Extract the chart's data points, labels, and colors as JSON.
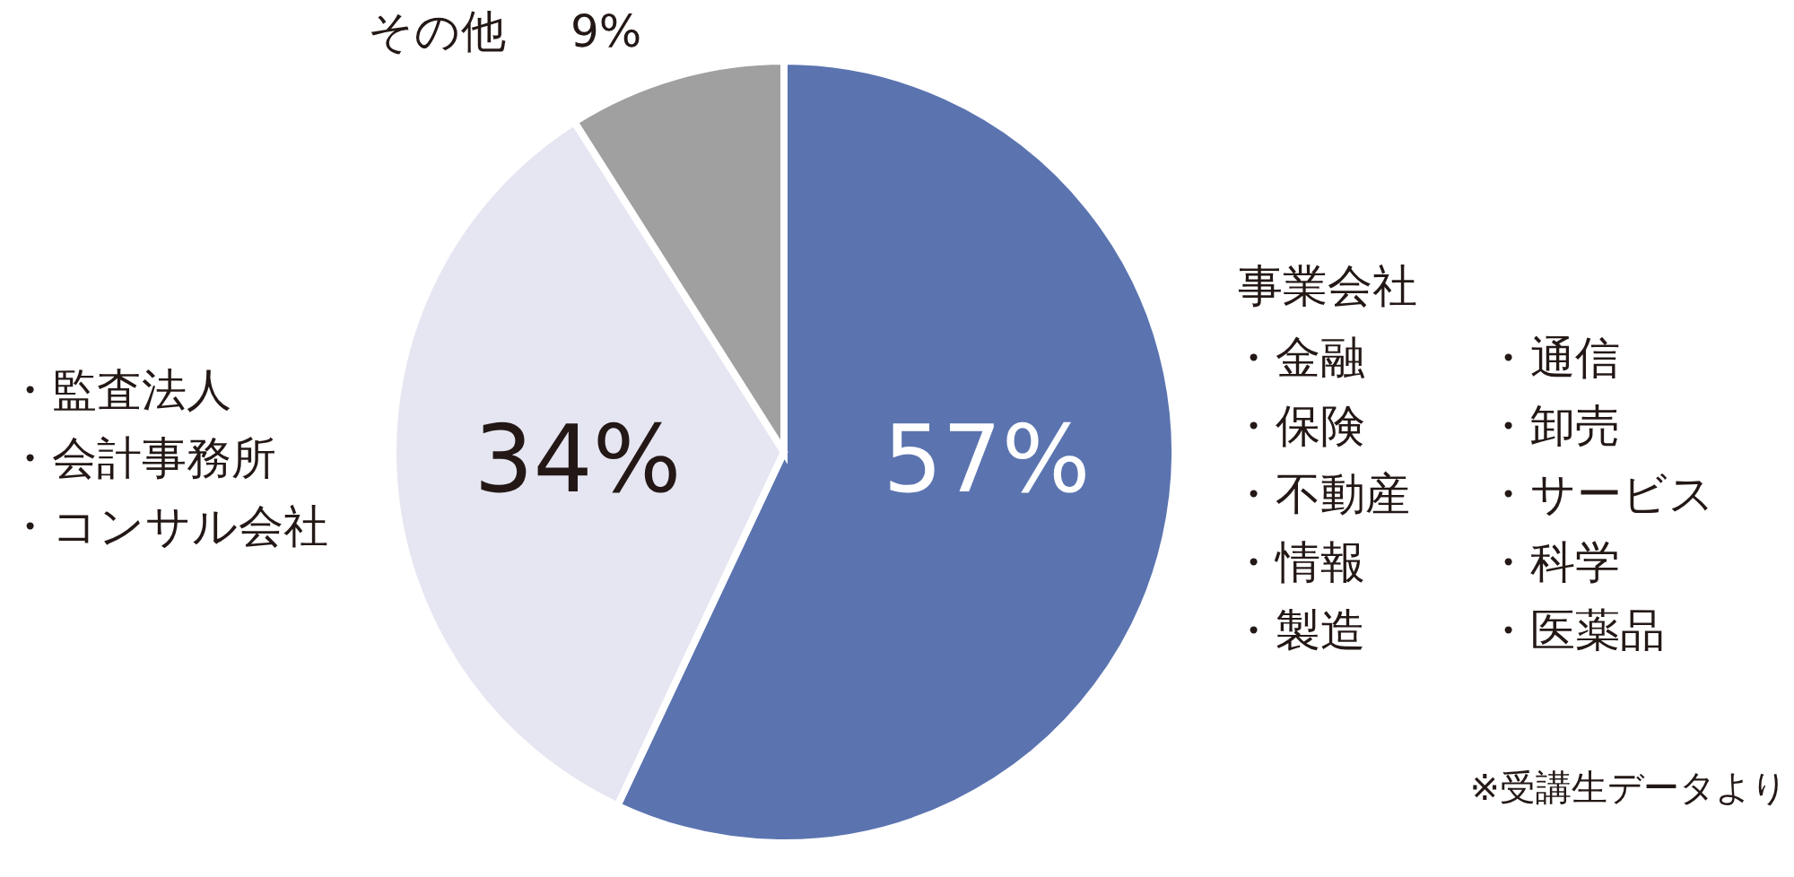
{
  "chart_data": {
    "type": "pie",
    "categories": [
      "事業会社",
      null,
      "その他"
    ],
    "values": [
      57,
      34,
      9
    ],
    "colors": [
      "#5b74b0",
      "#e6e6f2",
      "#9fa09f"
    ],
    "value_labels": [
      "57%",
      "34%",
      "9%"
    ],
    "annotations": [
      "・監査法人",
      "・会計事務所",
      "・コンサル会社",
      "・金融",
      "・保険",
      "・不動産",
      "・情報",
      "・製造",
      "・通信",
      "・卸売",
      "・サービス",
      "・科学",
      "・医薬品",
      "※受講生データより"
    ]
  }
}
